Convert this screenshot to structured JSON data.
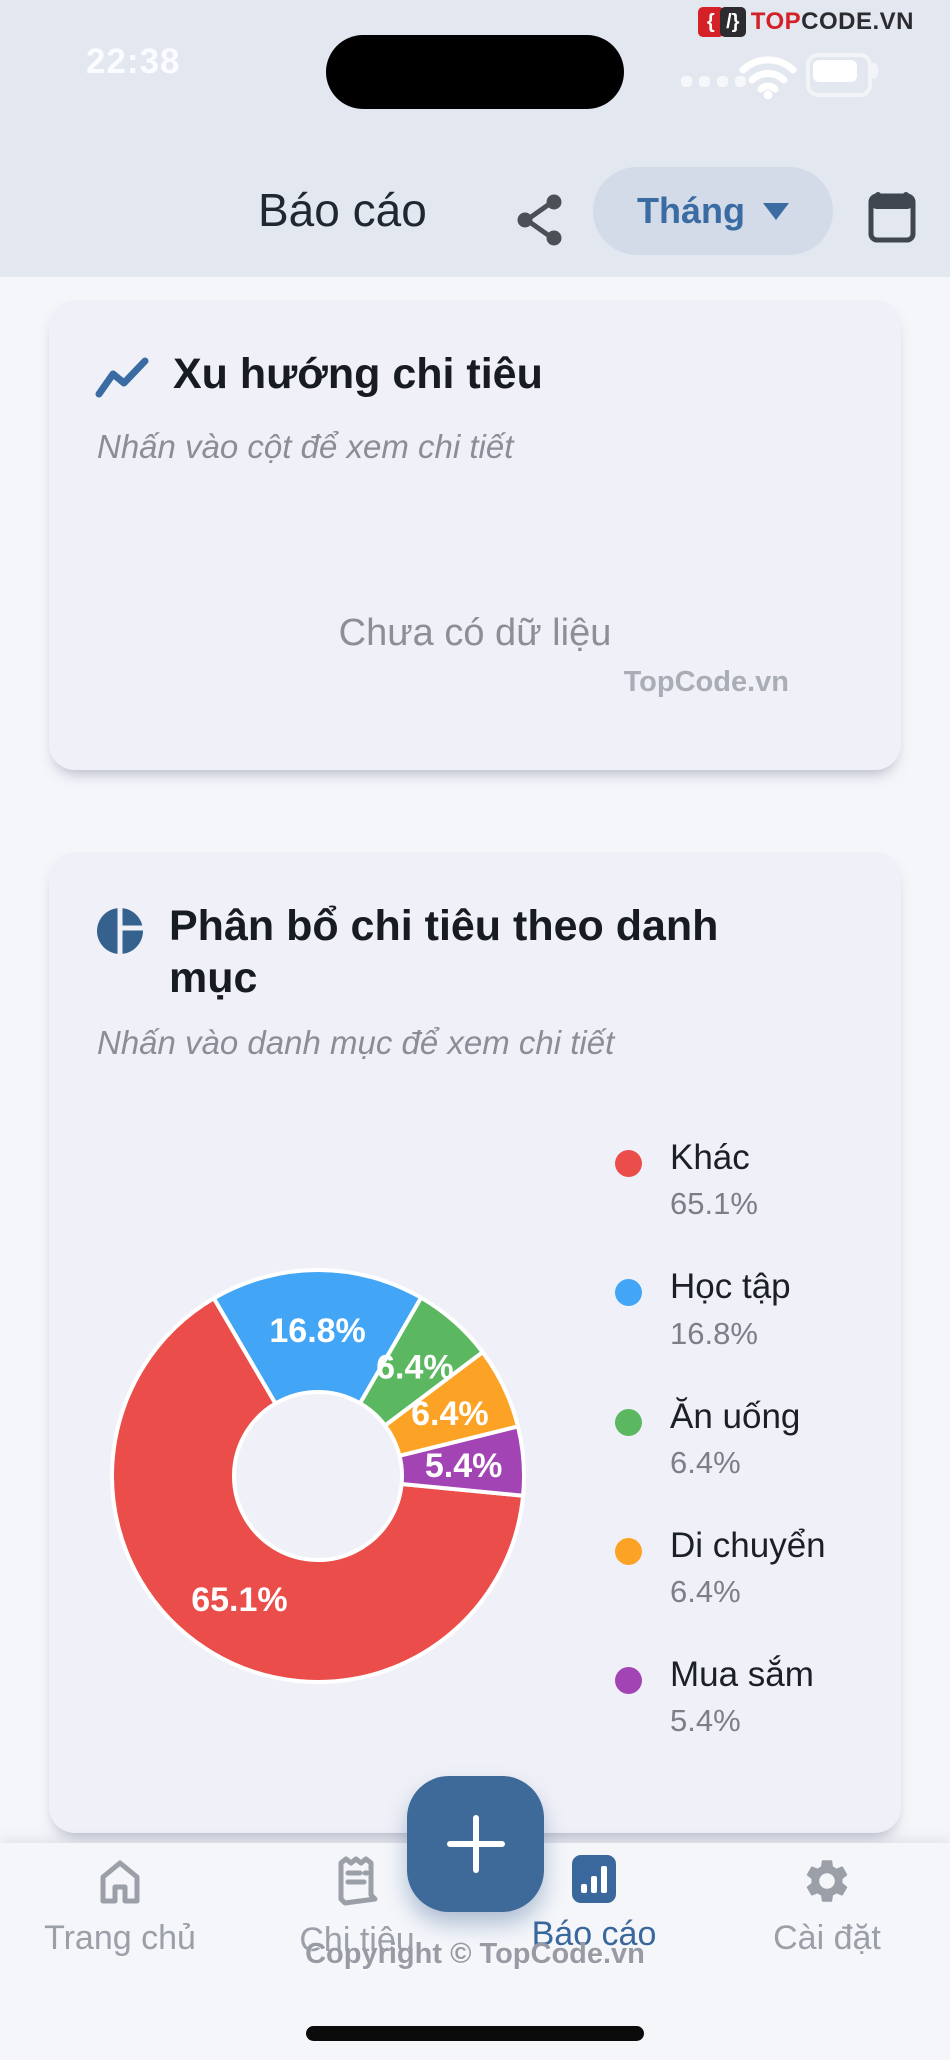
{
  "status_bar": {
    "time": "22:38"
  },
  "brand": {
    "icon_left": "{",
    "icon_right": "/}",
    "t1": "TOP",
    "t2": "CODE.VN"
  },
  "header": {
    "title": "Báo cáo",
    "period_selector": {
      "label": "Tháng"
    }
  },
  "trend_card": {
    "title": "Xu hướng chi tiêu",
    "subtitle": "Nhấn vào cột để xem chi tiết",
    "empty_text": "Chưa có dữ liệu",
    "watermark": "TopCode.vn"
  },
  "distribution_card": {
    "title": "Phân bổ chi tiêu theo danh mục",
    "subtitle": "Nhấn vào danh mục để xem chi tiết"
  },
  "chart_data": {
    "type": "pie",
    "variant": "donut",
    "title": "Phân bổ chi tiêu theo danh mục",
    "labels": [
      "Khác",
      "Học tập",
      "Ăn uống",
      "Di chuyển",
      "Mua sắm"
    ],
    "values": [
      65.1,
      16.8,
      6.4,
      6.4,
      5.4
    ],
    "slice_labels": [
      "65.1%",
      "16.8%",
      "6.4%",
      "6.4%",
      "5.4%"
    ],
    "colors": [
      "#ea4d4a",
      "#42a5f5",
      "#5cb860",
      "#fca326",
      "#a344b4"
    ],
    "start_angle_deg_from_top": 95.5,
    "inner_radius_ratio": 0.41,
    "legend_position": "right",
    "legend": [
      {
        "label": "Khác",
        "value": "65.1%"
      },
      {
        "label": "Học tập",
        "value": "16.8%"
      },
      {
        "label": "Ăn uống",
        "value": "6.4%"
      },
      {
        "label": "Di chuyển",
        "value": "6.4%"
      },
      {
        "label": "Mua sắm",
        "value": "5.4%"
      }
    ]
  },
  "fab": {
    "label": "+"
  },
  "nav": {
    "items": [
      {
        "label": "Trang chủ",
        "icon": "home-icon",
        "active": false
      },
      {
        "label": "Chi tiêu",
        "icon": "receipt-icon",
        "active": false
      },
      {
        "label": "Báo cáo",
        "icon": "bar-chart-icon",
        "active": true
      },
      {
        "label": "Cài đặt",
        "icon": "gear-icon",
        "active": false
      }
    ]
  },
  "footer": {
    "copyright": "Copyright © TopCode.vn"
  },
  "colors": {
    "accent_blue": "#3d6a99",
    "header_bg": "#e3e7f0",
    "page_bg": "#f5f6fa",
    "card_bg": "#f0f1f8",
    "active_nav": "#3a679c"
  }
}
